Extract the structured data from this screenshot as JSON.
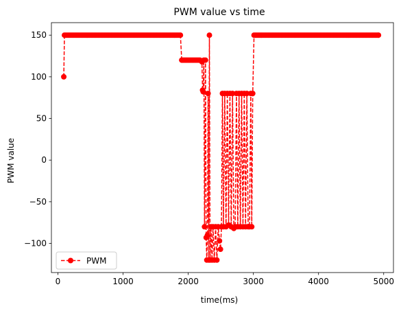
{
  "chart_data": {
    "type": "line",
    "title": "PWM value vs time",
    "xlabel": "time(ms)",
    "ylabel": "PWM value",
    "xlim": [
      -100,
      5150
    ],
    "ylim": [
      -135,
      165
    ],
    "xticks": [
      0,
      1000,
      2000,
      3000,
      4000,
      5000
    ],
    "yticks": [
      -100,
      -50,
      0,
      50,
      100,
      150
    ],
    "grid": false,
    "legend_position": "lower-left",
    "series_color": "#ff0000",
    "line_style": "dashed",
    "marker": "circle",
    "series": [
      {
        "name": "PWM",
        "points": [
          [
            90,
            100
          ],
          [
            100,
            150
          ],
          [
            1880,
            150
          ],
          [
            1900,
            120
          ],
          [
            2180,
            120
          ],
          [
            2200,
            119
          ],
          [
            2210,
            118
          ],
          [
            2220,
            84
          ],
          [
            2230,
            82
          ],
          [
            2240,
            120
          ],
          [
            2250,
            -80
          ],
          [
            2265,
            120
          ],
          [
            2275,
            -93
          ],
          [
            2285,
            -120
          ],
          [
            2295,
            -90
          ],
          [
            2305,
            80
          ],
          [
            2315,
            -120
          ],
          [
            2325,
            150
          ],
          [
            2335,
            -120
          ],
          [
            2350,
            -80
          ],
          [
            2365,
            -120
          ],
          [
            2380,
            -80
          ],
          [
            2400,
            -120
          ],
          [
            2420,
            -80
          ],
          [
            2440,
            -120
          ],
          [
            2460,
            -80
          ],
          [
            2480,
            -97
          ],
          [
            2495,
            -107
          ],
          [
            2510,
            -80
          ],
          [
            2525,
            80
          ],
          [
            2540,
            -80
          ],
          [
            2560,
            80
          ],
          [
            2580,
            -80
          ],
          [
            2600,
            80
          ],
          [
            2620,
            -78
          ],
          [
            2640,
            80
          ],
          [
            2660,
            -80
          ],
          [
            2680,
            80
          ],
          [
            2700,
            -82
          ],
          [
            2720,
            -80
          ],
          [
            2740,
            80
          ],
          [
            2760,
            -80
          ],
          [
            2780,
            80
          ],
          [
            2800,
            -80
          ],
          [
            2820,
            80
          ],
          [
            2840,
            -80
          ],
          [
            2860,
            80
          ],
          [
            2880,
            -80
          ],
          [
            2900,
            80
          ],
          [
            2920,
            -80
          ],
          [
            2940,
            -80
          ],
          [
            2960,
            80
          ],
          [
            2975,
            -80
          ],
          [
            2990,
            80
          ],
          [
            3010,
            150
          ],
          [
            4920,
            150
          ]
        ]
      }
    ]
  }
}
